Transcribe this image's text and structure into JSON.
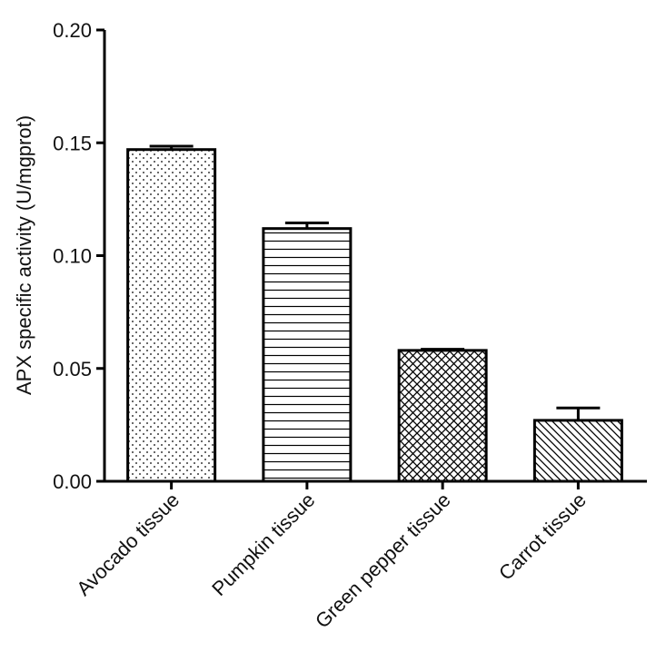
{
  "chart_data": {
    "type": "bar",
    "title": "",
    "xlabel": "",
    "ylabel": "APX specific activity (U/mgprot)",
    "categories": [
      "Avocado tissue",
      "Pumpkin tissue",
      "Green pepper tissue",
      "Carrot tissue"
    ],
    "values": [
      0.147,
      0.112,
      0.058,
      0.027
    ],
    "errors": [
      0.0015,
      0.0025,
      0.0005,
      0.0055
    ],
    "patterns": [
      "dots",
      "horizontal-lines",
      "crosshatch",
      "diagonal-lines"
    ],
    "ylim": [
      0,
      0.2
    ],
    "yticks": [
      "0.00",
      "0.05",
      "0.10",
      "0.15",
      "0.20"
    ],
    "grid": false,
    "legend": "none",
    "colors": {
      "bar_stroke": "#000000",
      "bar_fill": "#ffffff",
      "pattern": "#000000"
    }
  }
}
